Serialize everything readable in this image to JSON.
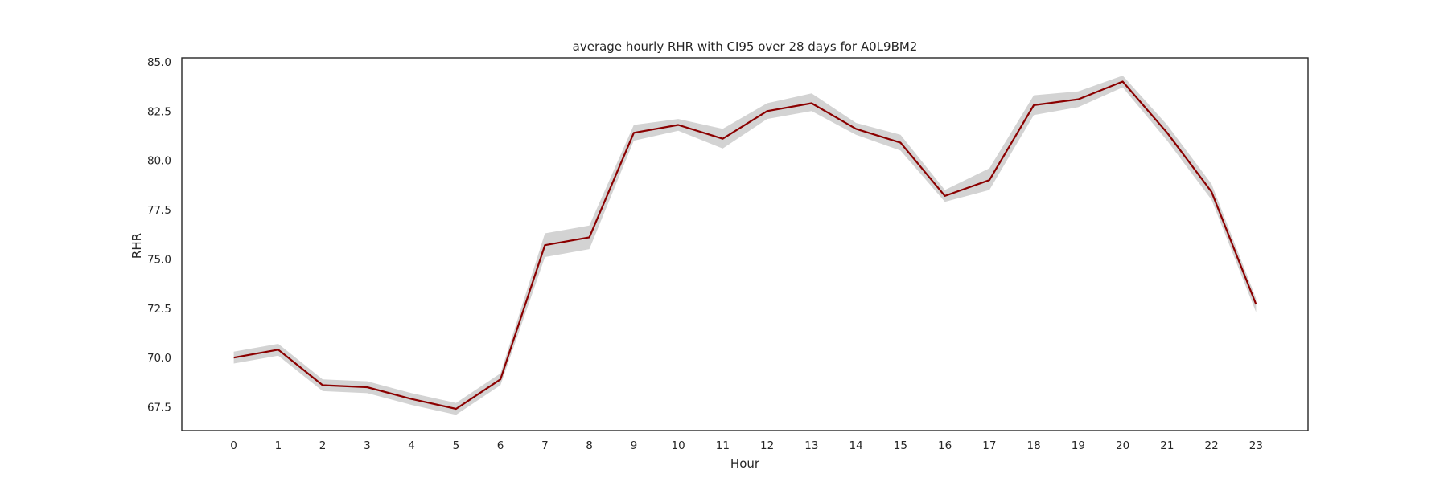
{
  "chart_data": {
    "type": "line",
    "title": "average hourly RHR with CI95 over 28 days for A0L9BM2",
    "xlabel": "Hour",
    "ylabel": "RHR",
    "x": [
      0,
      1,
      2,
      3,
      4,
      5,
      6,
      7,
      8,
      9,
      10,
      11,
      12,
      13,
      14,
      15,
      16,
      17,
      18,
      19,
      20,
      21,
      22,
      23
    ],
    "xlim": [
      -1.17,
      24.17
    ],
    "ylim": [
      66.3,
      85.2
    ],
    "yticks": [
      "67.5",
      "70.0",
      "72.5",
      "75.0",
      "77.5",
      "80.0",
      "82.5",
      "85.0"
    ],
    "series": [
      {
        "values": [
          70.0,
          70.4,
          68.6,
          68.5,
          67.9,
          67.4,
          68.9,
          75.7,
          76.1,
          81.4,
          81.8,
          81.1,
          82.5,
          82.9,
          81.6,
          80.9,
          78.2,
          79.0,
          82.8,
          83.1,
          84.0,
          81.4,
          78.4,
          72.7
        ],
        "ci_lower": [
          69.7,
          70.1,
          68.3,
          68.2,
          67.6,
          67.1,
          68.6,
          75.1,
          75.5,
          81.0,
          81.5,
          80.6,
          82.1,
          82.5,
          81.3,
          80.5,
          77.9,
          78.5,
          82.3,
          82.7,
          83.7,
          81.0,
          78.0,
          72.3
        ],
        "ci_upper": [
          70.3,
          70.7,
          68.9,
          68.8,
          68.2,
          67.7,
          69.2,
          76.3,
          76.7,
          81.8,
          82.1,
          81.6,
          82.9,
          83.4,
          81.9,
          81.3,
          78.5,
          79.6,
          83.3,
          83.5,
          84.3,
          81.8,
          78.8,
          73.0
        ]
      }
    ],
    "colors": {
      "line": "#8b0000",
      "ci_band": "#d3d3d3",
      "frame": "#262626",
      "text": "#262626"
    },
    "grid": false
  }
}
